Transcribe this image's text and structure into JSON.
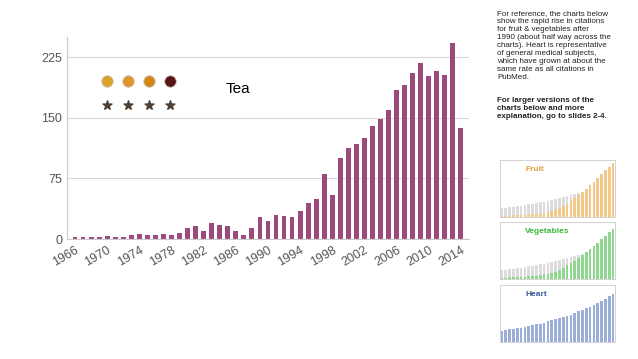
{
  "chart_data": [
    {
      "type": "bar",
      "annotation": "Tea",
      "x": [
        1966,
        1967,
        1968,
        1969,
        1970,
        1971,
        1972,
        1973,
        1974,
        1975,
        1976,
        1977,
        1978,
        1979,
        1980,
        1981,
        1982,
        1983,
        1984,
        1985,
        1986,
        1987,
        1988,
        1989,
        1990,
        1991,
        1992,
        1993,
        1994,
        1995,
        1996,
        1997,
        1998,
        1999,
        2000,
        2001,
        2002,
        2003,
        2004,
        2005,
        2006,
        2007,
        2008,
        2009,
        2010,
        2011,
        2012,
        2013,
        2014
      ],
      "values": [
        2,
        2,
        2,
        3,
        4,
        3,
        3,
        5,
        6,
        5,
        5,
        6,
        5,
        8,
        14,
        16,
        10,
        20,
        17,
        16,
        10,
        5,
        14,
        27,
        22,
        30,
        28,
        27,
        35,
        45,
        50,
        80,
        55,
        100,
        113,
        118,
        125,
        140,
        148,
        160,
        185,
        190,
        205,
        218,
        202,
        208,
        203,
        242,
        137
      ],
      "color": "#9b4a7d",
      "xlim": [
        1965,
        2015
      ],
      "xticks": [
        1966,
        1970,
        1974,
        1978,
        1982,
        1986,
        1990,
        1994,
        1998,
        2002,
        2006,
        2010,
        2014
      ],
      "ylim": [
        0,
        250
      ],
      "yticks": [
        0,
        75,
        150,
        225
      ],
      "grid": true
    },
    {
      "type": "bar",
      "title": "Fruit",
      "tick_labels": false,
      "xlim": [
        -0.5,
        29.5
      ],
      "ylim": [
        0,
        100
      ],
      "series": [
        {
          "color": "#dcdcdc",
          "values": [
            15,
            16,
            17,
            18,
            19,
            20,
            21,
            22,
            23,
            24,
            26,
            27,
            28,
            30,
            31,
            33,
            35,
            36,
            38,
            40,
            42,
            44,
            46,
            48,
            51,
            54,
            57,
            60,
            64,
            68
          ]
        },
        {
          "color": "#f2c98a",
          "values": [
            2,
            2,
            2,
            3,
            3,
            3,
            4,
            4,
            5,
            5,
            6,
            7,
            8,
            10,
            12,
            15,
            19,
            23,
            28,
            33,
            38,
            44,
            50,
            56,
            62,
            68,
            75,
            82,
            88,
            95
          ]
        }
      ]
    },
    {
      "type": "bar",
      "title": "Vegetables",
      "tick_labels": false,
      "xlim": [
        -0.5,
        29.5
      ],
      "ylim": [
        0,
        100
      ],
      "series": [
        {
          "color": "#dcdcdc",
          "values": [
            15,
            16,
            17,
            18,
            19,
            20,
            21,
            22,
            23,
            24,
            26,
            27,
            28,
            30,
            31,
            33,
            35,
            36,
            38,
            40,
            42,
            44,
            46,
            48,
            51,
            54,
            57,
            60,
            64,
            68
          ]
        },
        {
          "color": "#8fd68f",
          "values": [
            2,
            2,
            3,
            3,
            3,
            4,
            4,
            5,
            5,
            6,
            7,
            8,
            9,
            11,
            13,
            16,
            20,
            24,
            28,
            32,
            37,
            42,
            48,
            53,
            58,
            64,
            70,
            76,
            82,
            88
          ]
        }
      ]
    },
    {
      "type": "bar",
      "title": "Heart",
      "tick_labels": false,
      "xlim": [
        -0.5,
        29.5
      ],
      "ylim": [
        0,
        100
      ],
      "series": [
        {
          "color": "#dcdcdc",
          "values": [
            15,
            16,
            17,
            18,
            19,
            20,
            21,
            22,
            23,
            24,
            26,
            27,
            28,
            30,
            31,
            33,
            35,
            36,
            38,
            40,
            42,
            44,
            46,
            48,
            51,
            54,
            57,
            60,
            64,
            68
          ]
        },
        {
          "color": "#9aaed8",
          "values": [
            20,
            21,
            22,
            23,
            24,
            25,
            27,
            28,
            29,
            31,
            32,
            34,
            36,
            38,
            40,
            42,
            44,
            46,
            48,
            51,
            54,
            56,
            59,
            62,
            65,
            68,
            72,
            76,
            80,
            84
          ]
        }
      ]
    }
  ],
  "notes": {
    "text": "For reference, the charts below show the rapid rise in citations for fruit & vegetables after 1990 (about half way across the charts). Heart is representative of general medical subjects, which have grown at about the same rate as all citations in PubMed.",
    "bold": "For larger versions of the charts below and more explanation, go to slides 2-4."
  }
}
